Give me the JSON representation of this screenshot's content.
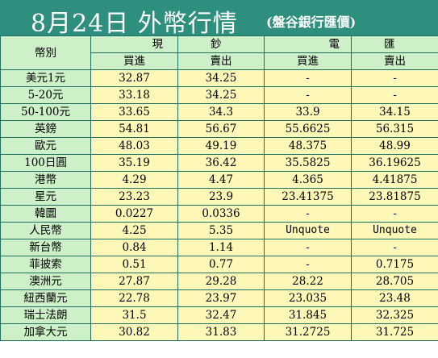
{
  "title": {
    "main": "8月24日 外幣行情",
    "sub": "(盤谷銀行匯價)"
  },
  "headers": {
    "currency": "幣別",
    "cash_left": "現",
    "cash_right": "鈔",
    "tt_left": "電",
    "tt_right": "匯",
    "buy": "買進",
    "sell": "賣出"
  },
  "rows": [
    {
      "currency": "美元1元",
      "cash_buy": "32.87",
      "cash_sell": "34.25",
      "tt_buy": "-",
      "tt_sell": "-"
    },
    {
      "currency": "5-20元",
      "cash_buy": "33.18",
      "cash_sell": "34.25",
      "tt_buy": "-",
      "tt_sell": "-"
    },
    {
      "currency": "50-100元",
      "cash_buy": "33.65",
      "cash_sell": "34.3",
      "tt_buy": "33.9",
      "tt_sell": "34.15"
    },
    {
      "currency": "英鎊",
      "cash_buy": "54.81",
      "cash_sell": "56.67",
      "tt_buy": "55.6625",
      "tt_sell": "56.315"
    },
    {
      "currency": "歐元",
      "cash_buy": "48.03",
      "cash_sell": "49.19",
      "tt_buy": "48.375",
      "tt_sell": "48.99"
    },
    {
      "currency": "100日圓",
      "cash_buy": "35.19",
      "cash_sell": "36.42",
      "tt_buy": "35.5825",
      "tt_sell": "36.19625"
    },
    {
      "currency": "港幣",
      "cash_buy": "4.29",
      "cash_sell": "4.47",
      "tt_buy": "4.365",
      "tt_sell": "4.41875"
    },
    {
      "currency": "星元",
      "cash_buy": "23.23",
      "cash_sell": "23.9",
      "tt_buy": "23.41375",
      "tt_sell": "23.81875"
    },
    {
      "currency": "韓圜",
      "cash_buy": "0.0227",
      "cash_sell": "0.0336",
      "tt_buy": "-",
      "tt_sell": "-"
    },
    {
      "currency": "人民幣",
      "cash_buy": "4.25",
      "cash_sell": "5.35",
      "tt_buy": "Unquote",
      "tt_sell": "Unquote"
    },
    {
      "currency": "新台幣",
      "cash_buy": "0.84",
      "cash_sell": "1.14",
      "tt_buy": "-",
      "tt_sell": "-"
    },
    {
      "currency": "菲披索",
      "cash_buy": "0.51",
      "cash_sell": "0.77",
      "tt_buy": "-",
      "tt_sell": "0.7175"
    },
    {
      "currency": "澳洲元",
      "cash_buy": "27.87",
      "cash_sell": "29.28",
      "tt_buy": "28.22",
      "tt_sell": "28.705"
    },
    {
      "currency": "紐西蘭元",
      "cash_buy": "22.78",
      "cash_sell": "23.97",
      "tt_buy": "23.035",
      "tt_sell": "23.48"
    },
    {
      "currency": "瑞士法朗",
      "cash_buy": "31.5",
      "cash_sell": "32.47",
      "tt_buy": "31.845",
      "tt_sell": "32.325"
    },
    {
      "currency": "加拿大元",
      "cash_buy": "30.82",
      "cash_sell": "31.83",
      "tt_buy": "31.2725",
      "tt_sell": "31.725"
    }
  ],
  "colors": {
    "title_bg": "#2f8f7f",
    "header_bg": "#cdf0c8",
    "cell_bg": "#fdf7b8",
    "border": "#1f6f63"
  }
}
